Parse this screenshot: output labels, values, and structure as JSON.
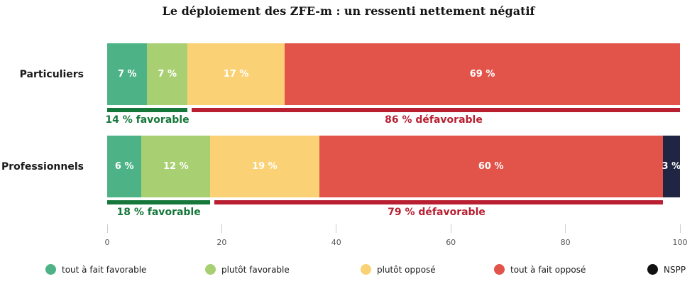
{
  "title": "Le déploiement des ZFE-m : un ressenti nettement négatif",
  "chart_data": {
    "type": "bar",
    "orientation": "horizontal",
    "stacked": true,
    "title": "Le déploiement des ZFE-m : un ressenti nettement négatif",
    "categories": [
      "Particuliers",
      "Professionnels"
    ],
    "series": [
      {
        "name": "tout à fait favorable",
        "color": "#4DB386",
        "values": [
          7,
          6
        ],
        "labels": [
          "7 %",
          "6 %"
        ]
      },
      {
        "name": "plutôt favorable",
        "color": "#A8D073",
        "values": [
          7,
          12
        ],
        "labels": [
          "7 %",
          "12 %"
        ]
      },
      {
        "name": "plutôt opposé",
        "color": "#FBD175",
        "values": [
          17,
          19
        ],
        "labels": [
          "17 %",
          "19 %"
        ]
      },
      {
        "name": "tout à fait opposé",
        "color": "#E2544A",
        "values": [
          69,
          60
        ],
        "labels": [
          "69 %",
          "60 %"
        ]
      },
      {
        "name": "NSPP",
        "color": "#1F2543",
        "legend_color": "#111111",
        "values": [
          0,
          3
        ],
        "labels": [
          "",
          "3 %"
        ]
      }
    ],
    "summary_brackets": [
      {
        "category": "Particuliers",
        "favorable_pct": 14,
        "favorable_label": "14 % favorable",
        "defavorable_pct": 86,
        "defavorable_label": "86 % défavorable"
      },
      {
        "category": "Professionnels",
        "favorable_pct": 18,
        "favorable_label": "18 % favorable",
        "defavorable_pct": 79,
        "defavorable_label": "79 % défavorable"
      }
    ],
    "colors": {
      "favorable_accent": "#15773A",
      "defavorable_accent": "#B81F31",
      "axis_tick": "#CCCCCC",
      "axis_label": "#555555"
    },
    "xlim": [
      0,
      100
    ],
    "x_ticks": [
      "0",
      "20",
      "40",
      "60",
      "80",
      "100"
    ],
    "grid": false,
    "legend_position": "bottom"
  }
}
